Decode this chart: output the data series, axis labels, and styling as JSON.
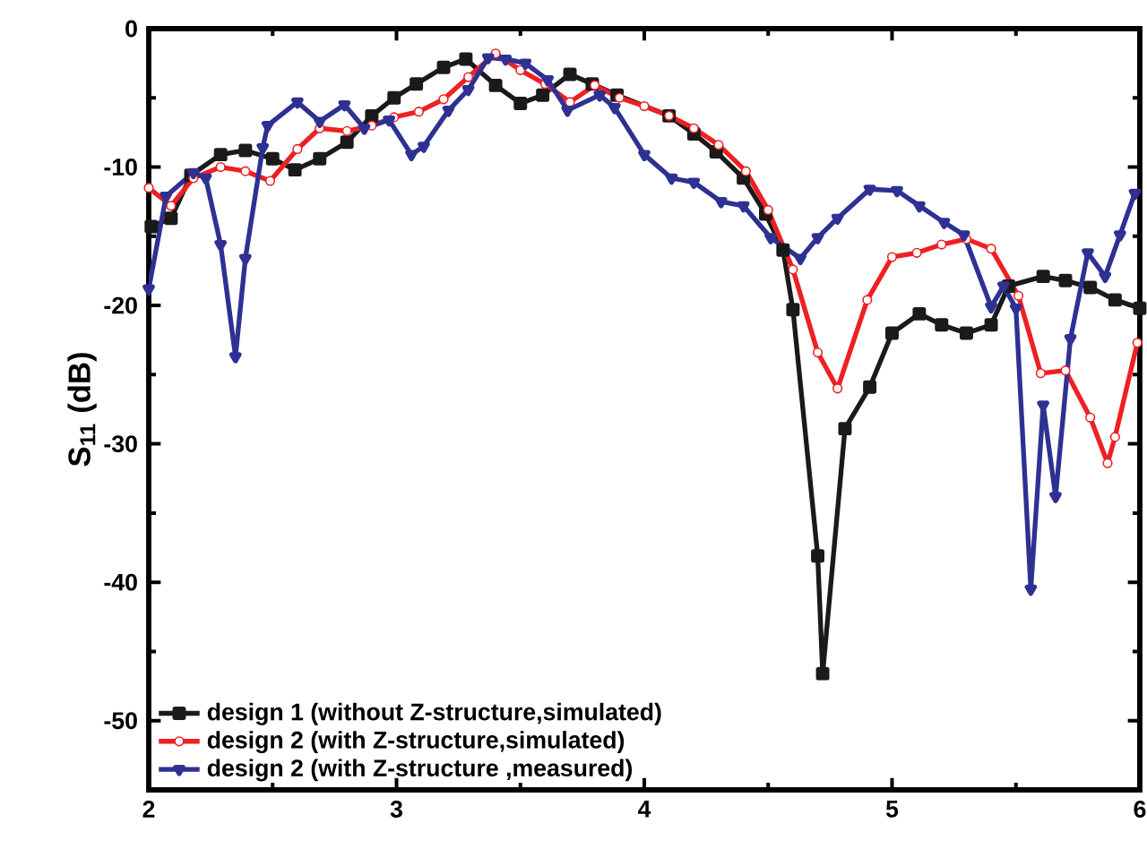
{
  "chart_data": {
    "type": "line",
    "ylabel": "S$_{11}$ (dB)",
    "xlim": [
      2,
      6
    ],
    "ylim": [
      -55,
      0
    ],
    "xticks": [
      2,
      3,
      4,
      5,
      6
    ],
    "yticks": [
      -50,
      -40,
      -30,
      -20,
      -10,
      0
    ],
    "legend": "bottom left",
    "grid": false,
    "line_style": "solid",
    "series": [
      {
        "name": "design 1 (without Z-structure,simulated)",
        "color": "#1a1a1a",
        "marker": "square",
        "x": [
          2.01,
          2.09,
          2.17,
          2.29,
          2.39,
          2.5,
          2.59,
          2.69,
          2.8,
          2.9,
          2.99,
          3.08,
          3.19,
          3.28,
          3.4,
          3.5,
          3.59,
          3.7,
          3.79,
          3.89,
          4.1,
          4.2,
          4.29,
          4.4,
          4.49,
          4.56,
          4.6,
          4.7,
          4.72,
          4.81,
          4.91,
          5.0,
          5.11,
          5.2,
          5.3,
          5.4,
          5.47,
          5.61,
          5.7,
          5.8,
          5.9,
          6.0
        ],
        "values": [
          -14.3,
          -13.7,
          -10.6,
          -9.1,
          -8.8,
          -9.4,
          -10.2,
          -9.4,
          -8.2,
          -6.3,
          -5.0,
          -4.0,
          -2.8,
          -2.2,
          -4.1,
          -5.4,
          -4.8,
          -3.3,
          -4.0,
          -4.8,
          -6.3,
          -7.6,
          -8.9,
          -10.8,
          -13.4,
          -16.0,
          -20.3,
          -38.1,
          -46.6,
          -28.9,
          -25.9,
          -22.0,
          -20.6,
          -21.4,
          -22.0,
          -21.4,
          -18.6,
          -17.9,
          -18.2,
          -18.7,
          -19.6,
          -20.2
        ]
      },
      {
        "name": "design 2 (with Z-structure,simulated)",
        "color": "#ee2024",
        "marker": "circle",
        "x": [
          2.0,
          2.09,
          2.18,
          2.29,
          2.39,
          2.49,
          2.6,
          2.69,
          2.8,
          2.9,
          2.99,
          3.09,
          3.19,
          3.29,
          3.4,
          3.5,
          3.6,
          3.7,
          3.8,
          3.9,
          4.0,
          4.1,
          4.2,
          4.3,
          4.41,
          4.5,
          4.6,
          4.7,
          4.78,
          4.9,
          5.0,
          5.1,
          5.2,
          5.3,
          5.4,
          5.51,
          5.6,
          5.7,
          5.8,
          5.87,
          5.9,
          5.99
        ],
        "values": [
          -11.5,
          -12.8,
          -10.8,
          -10.0,
          -10.3,
          -11.0,
          -8.7,
          -7.2,
          -7.4,
          -7.0,
          -6.4,
          -6.0,
          -5.1,
          -3.5,
          -1.8,
          -3.0,
          -4.0,
          -5.3,
          -4.1,
          -5.0,
          -5.6,
          -6.3,
          -7.2,
          -8.4,
          -10.3,
          -13.1,
          -17.4,
          -23.4,
          -26.0,
          -19.6,
          -16.5,
          -16.2,
          -15.6,
          -15.2,
          -15.9,
          -19.3,
          -24.9,
          -24.7,
          -28.1,
          -31.4,
          -29.5,
          -22.7
        ]
      },
      {
        "name": "design 2 (with Z-structure ,measured)",
        "color": "#2e3192",
        "marker": "triangle",
        "x": [
          2.0,
          2.07,
          2.18,
          2.23,
          2.29,
          2.35,
          2.39,
          2.46,
          2.48,
          2.6,
          2.69,
          2.79,
          2.87,
          2.97,
          3.06,
          3.11,
          3.21,
          3.29,
          3.37,
          3.44,
          3.52,
          3.61,
          3.69,
          3.82,
          3.88,
          4.0,
          4.11,
          4.2,
          4.31,
          4.4,
          4.51,
          4.63,
          4.7,
          4.78,
          4.91,
          5.02,
          5.11,
          5.21,
          5.29,
          5.4,
          5.45,
          5.5,
          5.56,
          5.61,
          5.66,
          5.72,
          5.79,
          5.86,
          5.92,
          5.98
        ],
        "values": [
          -18.8,
          -12.1,
          -10.4,
          -10.8,
          -15.6,
          -23.7,
          -16.6,
          -8.6,
          -7.0,
          -5.3,
          -6.7,
          -5.5,
          -7.2,
          -6.6,
          -9.1,
          -8.5,
          -5.9,
          -4.4,
          -2.1,
          -2.2,
          -2.5,
          -3.7,
          -5.9,
          -4.8,
          -5.7,
          -9.1,
          -10.8,
          -11.1,
          -12.5,
          -12.8,
          -15.1,
          -16.6,
          -15.1,
          -13.7,
          -11.6,
          -11.7,
          -12.8,
          -14.0,
          -14.9,
          -20.1,
          -18.6,
          -20.2,
          -40.5,
          -27.2,
          -33.8,
          -22.4,
          -16.2,
          -17.9,
          -14.9,
          -11.9
        ]
      }
    ]
  }
}
